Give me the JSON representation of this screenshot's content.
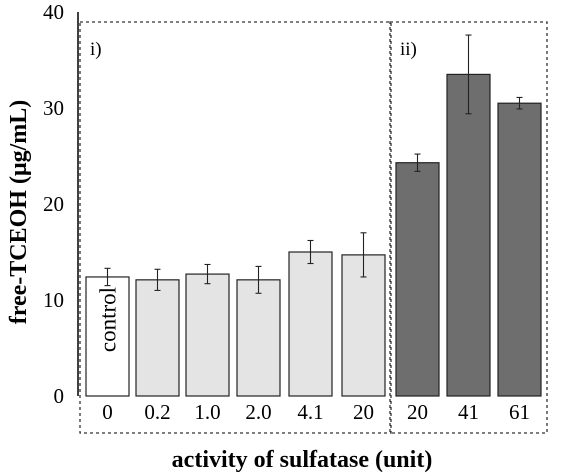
{
  "chart_data": {
    "type": "bar",
    "title": "",
    "xlabel": "activity of sulfatase (unit)",
    "ylabel": "free-TCEOH (μg/mL)",
    "ylim": [
      0,
      40
    ],
    "yticks": [
      0,
      10,
      20,
      30,
      40
    ],
    "grid": false,
    "legend": "none",
    "panels": [
      {
        "label": "i)",
        "first_bar": 0,
        "last_bar": 5
      },
      {
        "label": "ii)",
        "first_bar": 6,
        "last_bar": 8
      }
    ],
    "bars": [
      {
        "category": "0",
        "value": 12.4,
        "error": 0.9,
        "color": "#ffffff",
        "label": "control"
      },
      {
        "category": "0.2",
        "value": 12.1,
        "error": 1.1,
        "color": "#e4e4e4"
      },
      {
        "category": "1.0",
        "value": 12.7,
        "error": 1.0,
        "color": "#e4e4e4"
      },
      {
        "category": "2.0",
        "value": 12.1,
        "error": 1.4,
        "color": "#e4e4e4"
      },
      {
        "category": "4.1",
        "value": 15.0,
        "error": 1.2,
        "color": "#e4e4e4"
      },
      {
        "category": "20",
        "value": 14.7,
        "error": 2.3,
        "color": "#e4e4e4"
      },
      {
        "category": "20",
        "value": 24.3,
        "error": 0.9,
        "color": "#6e6e6e"
      },
      {
        "category": "41",
        "value": 33.5,
        "error": 4.1,
        "color": "#6e6e6e"
      },
      {
        "category": "61",
        "value": 30.5,
        "error": 0.6,
        "color": "#6e6e6e"
      }
    ]
  }
}
